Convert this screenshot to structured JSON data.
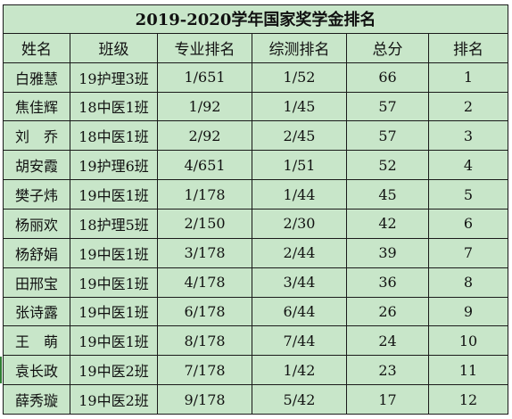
{
  "title": "2019-2020学年国家奖学金排名",
  "headers": [
    "姓名",
    "班级",
    "专业排名",
    "综测排名",
    "总分",
    "排名"
  ],
  "rows": [
    [
      "白雅慧",
      "19护理3班",
      "1/651",
      "1/52",
      "66",
      "1"
    ],
    [
      "焦佳辉",
      "18中医1班",
      "1/92",
      "1/45",
      "57",
      "2"
    ],
    [
      "刘　乔",
      "18中医1班",
      "2/92",
      "2/45",
      "57",
      "3"
    ],
    [
      "胡安霞",
      "19护理6班",
      "4/651",
      "1/51",
      "52",
      "4"
    ],
    [
      "樊子炜",
      "19中医1班",
      "1/178",
      "1/44",
      "45",
      "5"
    ],
    [
      "杨丽欢",
      "18护理5班",
      "2/150",
      "2/30",
      "42",
      "6"
    ],
    [
      "杨舒娟",
      "19中医1班",
      "3/178",
      "2/44",
      "39",
      "7"
    ],
    [
      "田邢宝",
      "19中医1班",
      "4/178",
      "3/44",
      "36",
      "8"
    ],
    [
      "张诗露",
      "19中医1班",
      "6/178",
      "6/44",
      "26",
      "9"
    ],
    [
      "王　萌",
      "19中医1班",
      "8/178",
      "7/44",
      "24",
      "10"
    ],
    [
      "袁长政",
      "19中医2班",
      "7/178",
      "1/42",
      "23",
      "11"
    ],
    [
      "薛秀璇",
      "19中医2班",
      "9/178",
      "5/42",
      "17",
      "12"
    ]
  ],
  "colors": {
    "cell_fill": "#c8e6c9",
    "border": "#1a1a1a",
    "text": "#111111"
  }
}
